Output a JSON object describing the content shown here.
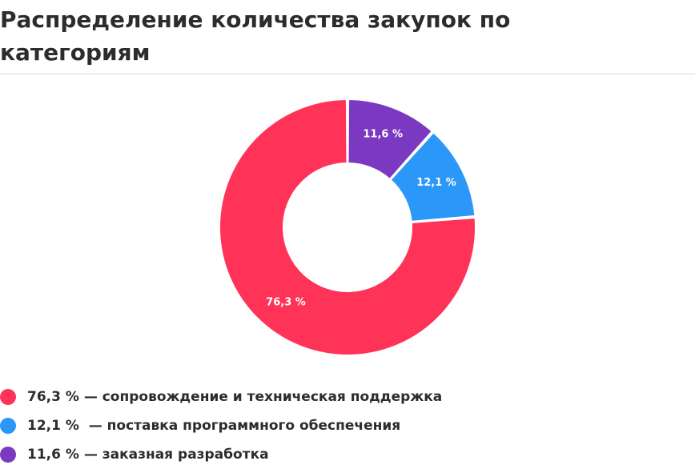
{
  "title": "Распределение количества закупок по категориям",
  "chart_data": {
    "type": "pie",
    "donut": true,
    "title": "Распределение количества закупок по категориям",
    "slices": [
      {
        "label": "сопровождение и техническая поддержка",
        "value": 76.3,
        "value_label": "76,3 %",
        "color": "#ff3358"
      },
      {
        "label": "поставка программного обеспечения",
        "value": 12.1,
        "value_label": "12,1 %",
        "color": "#2b97f8"
      },
      {
        "label": "заказная разработка",
        "value": 11.6,
        "value_label": "11,6 %",
        "color": "#7b38c0"
      }
    ],
    "legend_placement": "bottom-left"
  },
  "legend": [
    {
      "text": "76,3 % — сопровождение и техническая поддержка"
    },
    {
      "text": "12,1 %  — поставка программного обеспечения"
    },
    {
      "text": "11,6 % — заказная разработка"
    }
  ]
}
